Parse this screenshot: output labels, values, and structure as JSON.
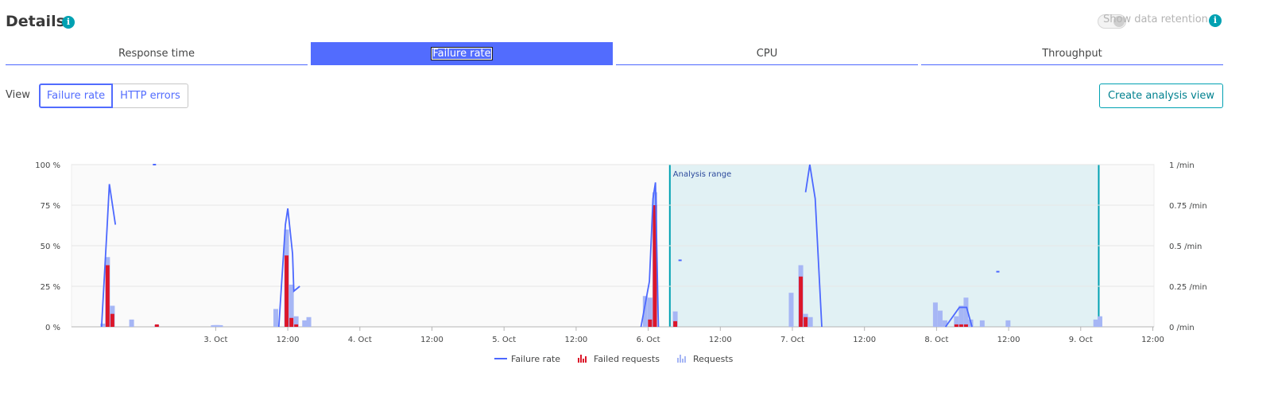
{
  "header": {
    "title": "Details",
    "info_icon": "i",
    "retention_label": "Show data retention"
  },
  "tabs": [
    {
      "label": "Response time",
      "active": false
    },
    {
      "label": "Failure rate",
      "active": true
    },
    {
      "label": "CPU",
      "active": false
    },
    {
      "label": "Throughput",
      "active": false
    }
  ],
  "view": {
    "label": "View",
    "options": [
      "Failure rate",
      "HTTP errors"
    ],
    "selected": "Failure rate"
  },
  "create_button": "Create analysis view",
  "colors": {
    "failure_rate": "#4c68ff",
    "failed_requests": "#dc172a",
    "requests": "#a6b6f5",
    "analysis_range": "#00a1b2",
    "accent": "#00a1b2"
  },
  "chart_data": {
    "type": "bar",
    "title": "",
    "left_axis": {
      "unit": "%",
      "ticks": [
        "100 %",
        "75 %",
        "50 %",
        "25 %",
        "0 %"
      ],
      "range": [
        0,
        100
      ]
    },
    "right_axis": {
      "unit": "/min",
      "ticks": [
        "1 /min",
        "0.75 /min",
        "0.5 /min",
        "0.25 /min",
        "0 /min"
      ],
      "range": [
        0,
        1
      ]
    },
    "x_axis": {
      "range_hours": [
        0,
        168
      ],
      "ticks": [
        {
          "label": "3. Oct",
          "h": 20
        },
        {
          "label": "12:00",
          "h": 32
        },
        {
          "label": "4. Oct",
          "h": 44
        },
        {
          "label": "12:00",
          "h": 56
        },
        {
          "label": "5. Oct",
          "h": 68
        },
        {
          "label": "12:00",
          "h": 80
        },
        {
          "label": "6. Oct",
          "h": 92
        },
        {
          "label": "12:00",
          "h": 104
        },
        {
          "label": "7. Oct",
          "h": 116
        },
        {
          "label": "12:00",
          "h": 128
        },
        {
          "label": "8. Oct",
          "h": 140
        },
        {
          "label": "12:00",
          "h": 152
        },
        {
          "label": "9. Oct",
          "h": 164
        },
        {
          "label": "12:00",
          "h": 176
        }
      ]
    },
    "analysis_range": {
      "label": "Analysis range",
      "start_h": 95.6,
      "end_h": 167.0
    },
    "requests": [
      {
        "h": 1.2,
        "v": 0.02
      },
      {
        "h": 2.0,
        "v": 0.43
      },
      {
        "h": 2.8,
        "v": 0.13
      },
      {
        "h": 6.0,
        "v": 0.045
      },
      {
        "h": 20.0,
        "v": 0.01
      },
      {
        "h": 20.8,
        "v": 0.01
      },
      {
        "h": 20.5,
        "v": 0.01
      },
      {
        "h": 20.0,
        "v": 0.01
      },
      {
        "h": 20.0,
        "v": 0.01
      },
      {
        "h": 19.8,
        "v": 0.01
      },
      {
        "h": 20.0,
        "v": 0.01
      },
      {
        "h": 20.0,
        "v": 0.01
      },
      {
        "h": 20.0,
        "v": 0.01
      },
      {
        "h": 20.0,
        "v": 0.01
      },
      {
        "h": 19.9,
        "v": 0.01
      },
      {
        "h": 20.4,
        "v": 0.01
      },
      {
        "h": 20.6,
        "v": 0.01
      },
      {
        "h": 20.2,
        "v": 0.01
      },
      {
        "h": 20.1,
        "v": 0.01
      },
      {
        "h": 20.1,
        "v": 0.01
      },
      {
        "h": 20.3,
        "v": 0.01
      },
      {
        "h": 20.0,
        "v": 0.01
      },
      {
        "h": 19.7,
        "v": 0.01
      },
      {
        "h": 19.6,
        "v": 0.01
      },
      {
        "h": 20.0,
        "v": 0.01
      },
      {
        "h": 20.0,
        "v": 0.01
      },
      {
        "h": 20.0,
        "v": 0.01
      },
      {
        "h": 20.0,
        "v": 0.01
      },
      {
        "h": 20.0,
        "v": 0.01
      },
      {
        "h": 20.0,
        "v": 0.01
      },
      {
        "h": 20.0,
        "v": 0.01
      },
      {
        "h": 20.0,
        "v": 0.01
      },
      {
        "h": 20.0,
        "v": 0.01
      },
      {
        "h": 10.2,
        "v": 0.01
      },
      {
        "h": 20.0,
        "v": 0.01
      },
      {
        "h": 30.0,
        "v": 0.11
      },
      {
        "h": 31.8,
        "v": 0.6
      },
      {
        "h": 32.6,
        "v": 0.26
      },
      {
        "h": 33.4,
        "v": 0.065
      },
      {
        "h": 34.8,
        "v": 0.04
      },
      {
        "h": 35.5,
        "v": 0.06
      },
      {
        "h": 91.5,
        "v": 0.19
      },
      {
        "h": 92.3,
        "v": 0.18
      },
      {
        "h": 93.1,
        "v": 0.83
      },
      {
        "h": 96.5,
        "v": 0.095
      },
      {
        "h": 115.8,
        "v": 0.21
      },
      {
        "h": 117.4,
        "v": 0.38
      },
      {
        "h": 118.2,
        "v": 0.08
      },
      {
        "h": 119.0,
        "v": 0.06
      },
      {
        "h": 139.8,
        "v": 0.15
      },
      {
        "h": 140.6,
        "v": 0.1
      },
      {
        "h": 141.4,
        "v": 0.04
      },
      {
        "h": 143.3,
        "v": 0.065
      },
      {
        "h": 144.1,
        "v": 0.13
      },
      {
        "h": 144.9,
        "v": 0.18
      },
      {
        "h": 145.7,
        "v": 0.045
      },
      {
        "h": 147.6,
        "v": 0.04
      },
      {
        "h": 151.9,
        "v": 0.04
      },
      {
        "h": 166.5,
        "v": 0.045
      },
      {
        "h": 167.2,
        "v": 0.065
      }
    ],
    "failed_requests": [
      {
        "h": 2.0,
        "v": 0.38
      },
      {
        "h": 2.8,
        "v": 0.08
      },
      {
        "h": 10.2,
        "v": 0.015
      },
      {
        "h": 31.8,
        "v": 0.44
      },
      {
        "h": 32.6,
        "v": 0.055
      },
      {
        "h": 33.4,
        "v": 0.015
      },
      {
        "h": 92.3,
        "v": 0.045
      },
      {
        "h": 93.1,
        "v": 0.75
      },
      {
        "h": 96.5,
        "v": 0.035
      },
      {
        "h": 117.4,
        "v": 0.31
      },
      {
        "h": 118.2,
        "v": 0.06
      },
      {
        "h": 143.3,
        "v": 0.015
      },
      {
        "h": 144.1,
        "v": 0.015
      },
      {
        "h": 144.9,
        "v": 0.015
      }
    ],
    "failure_rate_segments": [
      [
        [
          1.0,
          0
        ],
        [
          1.9,
          60
        ],
        [
          2.3,
          88
        ],
        [
          3.3,
          63
        ]
      ],
      [
        [
          30.5,
          0
        ],
        [
          31.6,
          63
        ],
        [
          32.0,
          73
        ],
        [
          32.8,
          45
        ],
        [
          33.0,
          22
        ],
        [
          34.0,
          25
        ]
      ],
      [
        [
          90.8,
          0
        ],
        [
          92.2,
          28
        ],
        [
          92.8,
          79
        ],
        [
          93.2,
          89
        ],
        [
          93.7,
          0
        ]
      ],
      [
        [
          118.2,
          83
        ],
        [
          118.9,
          100
        ],
        [
          119.8,
          79
        ],
        [
          120.9,
          0
        ]
      ],
      [
        [
          141.5,
          0
        ],
        [
          143.8,
          12
        ],
        [
          145.0,
          12
        ],
        [
          145.9,
          0
        ]
      ]
    ],
    "failure_rate_dashes": [
      {
        "h": 9.8,
        "v": 100
      },
      {
        "h": 97.3,
        "v": 41
      },
      {
        "h": 150.2,
        "v": 34
      }
    ],
    "legend": [
      "Failure rate",
      "Failed requests",
      "Requests"
    ]
  }
}
